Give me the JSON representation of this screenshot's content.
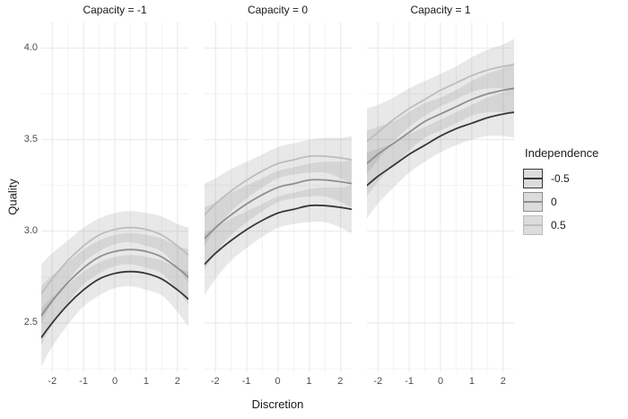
{
  "chart_data": {
    "type": "line",
    "title": "",
    "xlabel": "Discretion",
    "ylabel": "Quality",
    "facet_variable": "Capacity",
    "x_domain": [
      -2.35,
      2.35
    ],
    "y_domain": [
      2.23,
      4.14
    ],
    "grid": "on",
    "legend_position": "right",
    "x_ticks": [
      {
        "v": -2,
        "label": "-2"
      },
      {
        "v": -1,
        "label": "-1"
      },
      {
        "v": 0,
        "label": "0"
      },
      {
        "v": 1,
        "label": "1"
      },
      {
        "v": 2,
        "label": "2"
      }
    ],
    "x_minor": [
      -1.5,
      -0.5,
      0.5,
      1.5
    ],
    "y_ticks": [
      {
        "v": 4.0,
        "label": "4.0"
      },
      {
        "v": 3.5,
        "label": "3.5"
      },
      {
        "v": 3.0,
        "label": "3.0"
      },
      {
        "v": 2.5,
        "label": "2.5"
      }
    ],
    "y_minor": [
      2.25,
      2.75,
      3.25,
      3.75
    ],
    "x": [
      -2.35,
      -2,
      -1.5,
      -1,
      -0.5,
      0,
      0.5,
      1,
      1.5,
      2,
      2.35
    ],
    "facets": [
      {
        "label": "Capacity = -1",
        "series": [
          {
            "name": "-0.5",
            "color": "#373737",
            "y": [
              2.42,
              2.5,
              2.6,
              2.68,
              2.74,
              2.77,
              2.78,
              2.77,
              2.74,
              2.68,
              2.63
            ],
            "lo": [
              2.26,
              2.37,
              2.49,
              2.59,
              2.65,
              2.69,
              2.7,
              2.68,
              2.65,
              2.56,
              2.48
            ],
            "hi": [
              2.58,
              2.64,
              2.71,
              2.78,
              2.83,
              2.86,
              2.87,
              2.86,
              2.84,
              2.8,
              2.78
            ]
          },
          {
            "name": "0",
            "color": "#8f8f8f",
            "y": [
              2.54,
              2.62,
              2.72,
              2.8,
              2.86,
              2.89,
              2.9,
              2.89,
              2.86,
              2.8,
              2.75
            ],
            "lo": [
              2.38,
              2.49,
              2.61,
              2.71,
              2.77,
              2.81,
              2.82,
              2.8,
              2.77,
              2.68,
              2.6
            ],
            "hi": [
              2.7,
              2.76,
              2.83,
              2.9,
              2.95,
              2.98,
              2.99,
              2.98,
              2.96,
              2.92,
              2.9
            ]
          },
          {
            "name": "0.5",
            "color": "#bdbdbd",
            "y": [
              2.66,
              2.74,
              2.84,
              2.92,
              2.98,
              3.01,
              3.02,
              3.01,
              2.98,
              2.92,
              2.87
            ],
            "lo": [
              2.5,
              2.61,
              2.73,
              2.83,
              2.89,
              2.93,
              2.94,
              2.92,
              2.89,
              2.8,
              2.72
            ],
            "hi": [
              2.82,
              2.88,
              2.95,
              3.02,
              3.07,
              3.1,
              3.11,
              3.1,
              3.08,
              3.04,
              3.02
            ]
          }
        ]
      },
      {
        "label": "Capacity = 0",
        "series": [
          {
            "name": "-0.5",
            "color": "#373737",
            "y": [
              2.82,
              2.88,
              2.95,
              3.01,
              3.06,
              3.1,
              3.12,
              3.14,
              3.14,
              3.13,
              3.12
            ],
            "lo": [
              2.65,
              2.74,
              2.84,
              2.91,
              2.97,
              3.02,
              3.04,
              3.05,
              3.05,
              3.02,
              2.99
            ],
            "hi": [
              2.99,
              3.02,
              3.07,
              3.11,
              3.15,
              3.19,
              3.21,
              3.23,
              3.24,
              3.24,
              3.25
            ]
          },
          {
            "name": "0",
            "color": "#8f8f8f",
            "y": [
              2.96,
              3.02,
              3.09,
              3.15,
              3.2,
              3.24,
              3.26,
              3.28,
              3.28,
              3.27,
              3.26
            ],
            "lo": [
              2.79,
              2.88,
              2.98,
              3.05,
              3.11,
              3.16,
              3.18,
              3.19,
              3.19,
              3.16,
              3.13
            ],
            "hi": [
              3.13,
              3.16,
              3.21,
              3.25,
              3.29,
              3.33,
              3.35,
              3.37,
              3.38,
              3.38,
              3.39
            ]
          },
          {
            "name": "0.5",
            "color": "#bdbdbd",
            "y": [
              3.09,
              3.15,
              3.22,
              3.28,
              3.33,
              3.37,
              3.39,
              3.41,
              3.41,
              3.4,
              3.39
            ],
            "lo": [
              2.92,
              3.01,
              3.11,
              3.18,
              3.24,
              3.29,
              3.31,
              3.32,
              3.32,
              3.29,
              3.26
            ],
            "hi": [
              3.26,
              3.29,
              3.34,
              3.38,
              3.42,
              3.46,
              3.48,
              3.5,
              3.51,
              3.51,
              3.52
            ]
          }
        ]
      },
      {
        "label": "Capacity = 1",
        "series": [
          {
            "name": "-0.5",
            "color": "#373737",
            "y": [
              3.25,
              3.3,
              3.36,
              3.42,
              3.47,
              3.52,
              3.56,
              3.59,
              3.62,
              3.64,
              3.65
            ],
            "lo": [
              3.07,
              3.15,
              3.24,
              3.32,
              3.38,
              3.43,
              3.47,
              3.5,
              3.52,
              3.52,
              3.51
            ],
            "hi": [
              3.43,
              3.45,
              3.48,
              3.53,
              3.57,
              3.61,
              3.65,
              3.69,
              3.73,
              3.76,
              3.79
            ]
          },
          {
            "name": "0",
            "color": "#8f8f8f",
            "y": [
              3.37,
              3.42,
              3.48,
              3.54,
              3.6,
              3.64,
              3.68,
              3.72,
              3.75,
              3.77,
              3.78
            ],
            "lo": [
              3.19,
              3.27,
              3.36,
              3.44,
              3.51,
              3.55,
              3.59,
              3.63,
              3.65,
              3.65,
              3.64
            ],
            "hi": [
              3.55,
              3.57,
              3.6,
              3.65,
              3.7,
              3.73,
              3.77,
              3.82,
              3.86,
              3.89,
              3.92
            ]
          },
          {
            "name": "0.5",
            "color": "#bdbdbd",
            "y": [
              3.49,
              3.54,
              3.61,
              3.67,
              3.72,
              3.77,
              3.81,
              3.85,
              3.88,
              3.9,
              3.91
            ],
            "lo": [
              3.31,
              3.39,
              3.49,
              3.57,
              3.63,
              3.68,
              3.72,
              3.76,
              3.78,
              3.78,
              3.77
            ],
            "hi": [
              3.67,
              3.69,
              3.73,
              3.78,
              3.82,
              3.86,
              3.9,
              3.95,
              3.99,
              4.02,
              4.05
            ]
          }
        ]
      }
    ],
    "legend": {
      "title": "Independence",
      "key_fill": "#dcdcdc",
      "entries": [
        {
          "label": "-0.5",
          "color": "#373737"
        },
        {
          "label": "0",
          "color": "#8f8f8f"
        },
        {
          "label": "0.5",
          "color": "#bdbdbd"
        }
      ]
    },
    "colors": {
      "band_fill": "rgba(125,125,125,0.18)",
      "grid_major": "#e8e8e8",
      "grid_minor": "#f3f3f3",
      "tick_text": "#4d4d4d",
      "title_text": "#1a1a1a"
    }
  }
}
